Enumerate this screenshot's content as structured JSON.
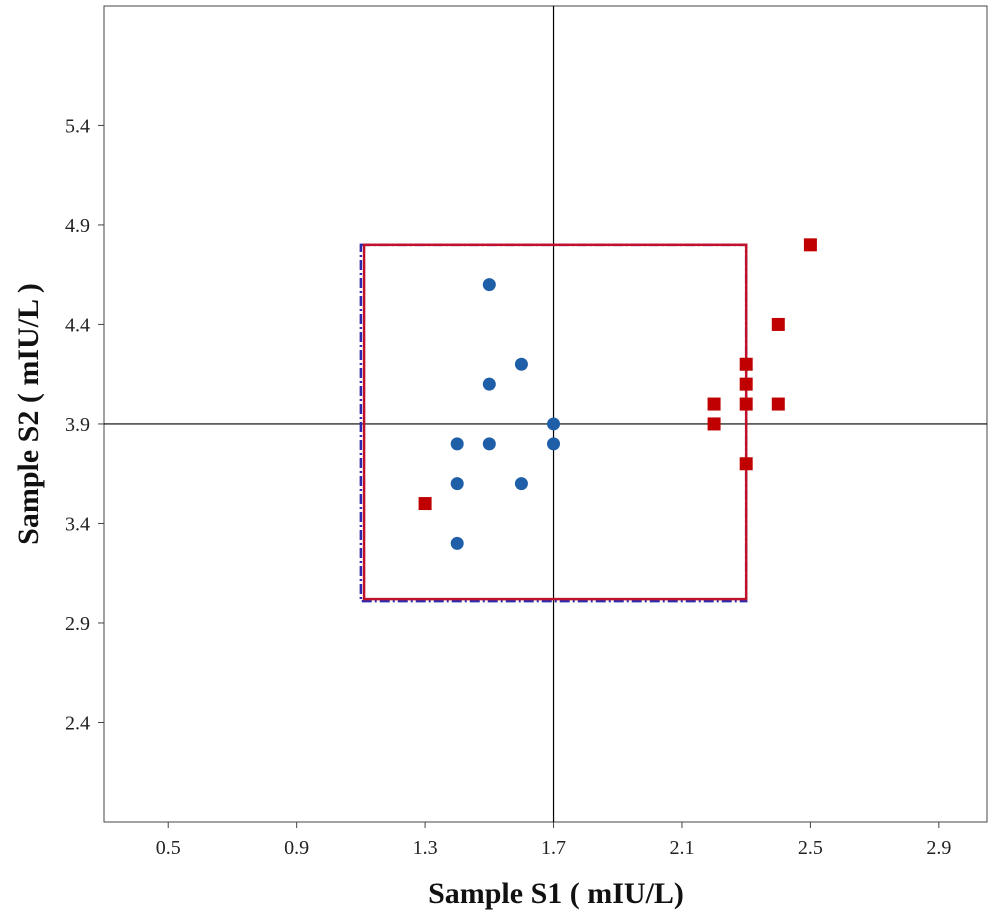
{
  "chart_data": {
    "type": "scatter",
    "xlabel": "Sample S1 ( mIU/L)",
    "ylabel": "Sample S2 ( mIU/L )",
    "xlim": [
      0.3,
      3.05
    ],
    "ylim": [
      1.9,
      6.0
    ],
    "x_ticks": [
      0.5,
      0.9,
      1.3,
      1.7,
      2.1,
      2.5,
      2.9
    ],
    "y_ticks": [
      2.4,
      2.9,
      3.4,
      3.9,
      4.4,
      4.9,
      5.4
    ],
    "x_tick_labels": [
      "0.5",
      "0.9",
      "1.3",
      "1.7",
      "2.1",
      "2.5",
      "2.9"
    ],
    "y_tick_labels": [
      "2.4",
      "2.9",
      "3.4",
      "3.9",
      "4.4",
      "4.9",
      "5.4"
    ],
    "grid": false,
    "reference_lines": {
      "x": 1.7,
      "y": 3.9,
      "color": "#000000"
    },
    "limit_boxes": [
      {
        "x_min": 1.1,
        "x_max": 2.3,
        "y_min": 3.01,
        "y_max": 4.8,
        "color": "#2b2bb0",
        "style": "dash-dot"
      },
      {
        "x_min": 1.11,
        "x_max": 2.3,
        "y_min": 3.02,
        "y_max": 4.8,
        "color": "#c0112a",
        "style": "solid"
      }
    ],
    "series": [
      {
        "marker": "circle",
        "color": "#1f5fa8",
        "points": [
          [
            1.5,
            4.6
          ],
          [
            1.6,
            4.2
          ],
          [
            1.5,
            4.1
          ],
          [
            1.7,
            3.9
          ],
          [
            1.4,
            3.8
          ],
          [
            1.5,
            3.8
          ],
          [
            1.7,
            3.8
          ],
          [
            1.4,
            3.6
          ],
          [
            1.6,
            3.6
          ],
          [
            1.4,
            3.3
          ]
        ]
      },
      {
        "marker": "square",
        "color": "#c00000",
        "points": [
          [
            2.5,
            4.8
          ],
          [
            2.4,
            4.4
          ],
          [
            2.3,
            4.2
          ],
          [
            2.3,
            4.1
          ],
          [
            2.2,
            4.0
          ],
          [
            2.3,
            4.0
          ],
          [
            2.4,
            4.0
          ],
          [
            2.2,
            3.9
          ],
          [
            2.3,
            3.7
          ],
          [
            1.3,
            3.5
          ]
        ]
      }
    ]
  }
}
